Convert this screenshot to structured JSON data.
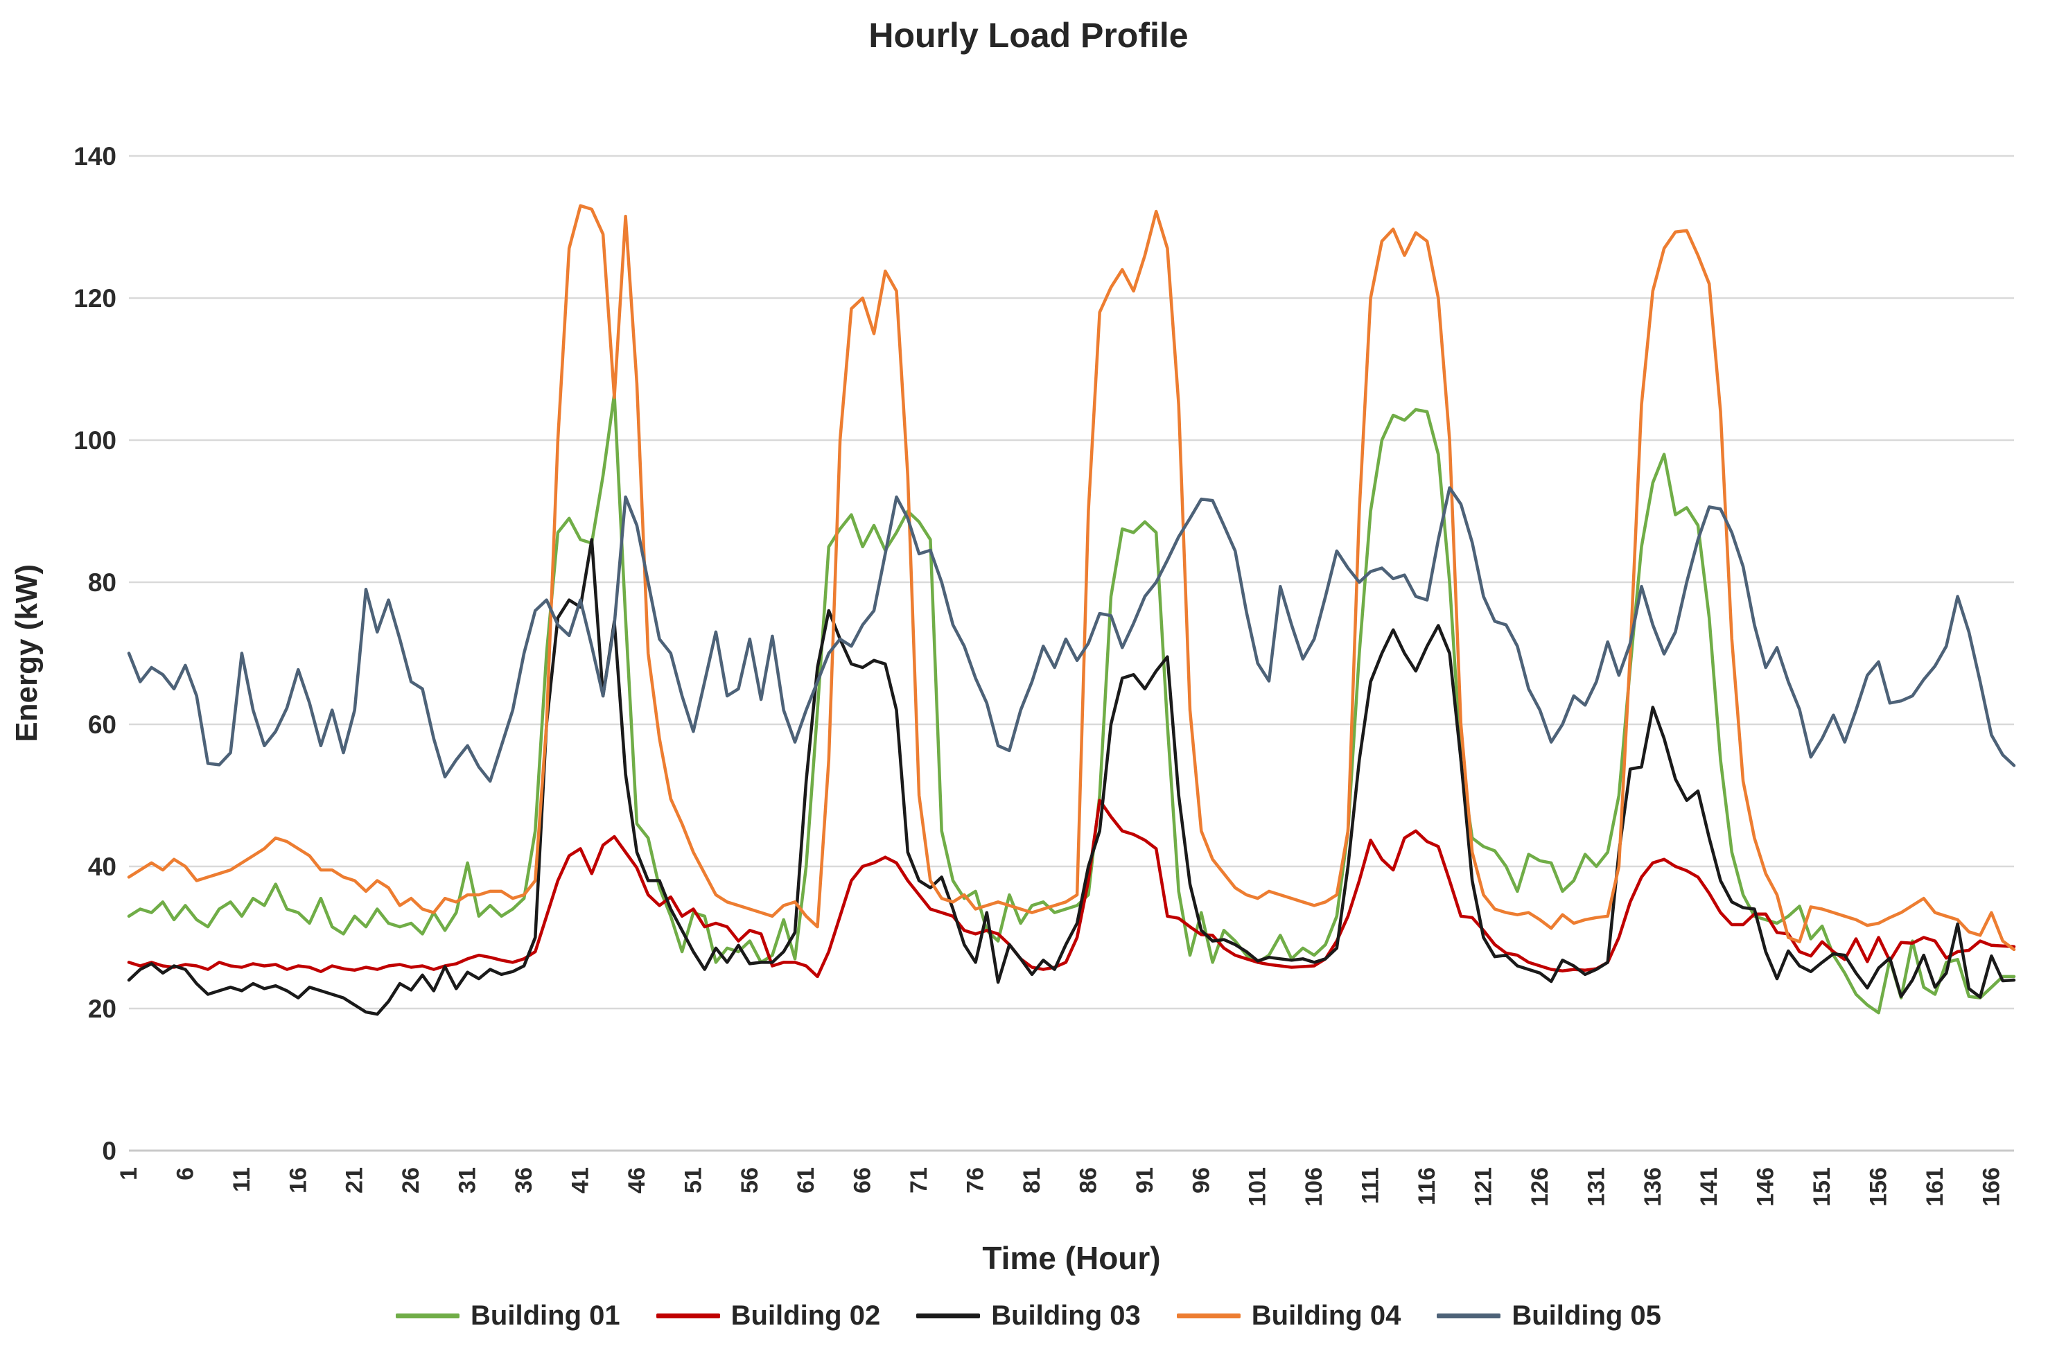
{
  "chart_data": {
    "type": "line",
    "title": "Hourly Load Profile",
    "xlabel": "Time (Hour)",
    "ylabel": "Energy (kW)",
    "hours": 168,
    "x_tick_labels": [
      1,
      6,
      11,
      16,
      21,
      26,
      31,
      36,
      41,
      46,
      51,
      56,
      61,
      66,
      71,
      76,
      81,
      86,
      91,
      96,
      101,
      106,
      111,
      116,
      121,
      126,
      131,
      136,
      141,
      146,
      151,
      156,
      161,
      166
    ],
    "y_ticks": [
      0,
      20,
      40,
      60,
      80,
      100,
      120,
      140
    ],
    "ylim": [
      0,
      140
    ],
    "grid": "horizontal",
    "gridline_color": "#D9D9D9",
    "legend_position": "bottom",
    "series": [
      {
        "name": "Building 01",
        "color": "#70AD47",
        "values": [
          33,
          34,
          33.5,
          35,
          32.5,
          34.5,
          32.5,
          31.5,
          34,
          35,
          33,
          35.5,
          34.5,
          37.5,
          34,
          33.5,
          32,
          35.5,
          31.5,
          30.5,
          33,
          31.5,
          34,
          32,
          31.5,
          32,
          30.5,
          33.5,
          31,
          33.5,
          40.5,
          33,
          34.5,
          33,
          34,
          35.5,
          45,
          70,
          87,
          89,
          86,
          85.5,
          95,
          106.5,
          75,
          46,
          44,
          37,
          33,
          28,
          33.5,
          33,
          26.5,
          28.5,
          28,
          29.5,
          26.5,
          27.5,
          32.5,
          27,
          40,
          62,
          85,
          87.5,
          89.5,
          85,
          88,
          84.5,
          87,
          90,
          88.5,
          86,
          45,
          38,
          35.5,
          36.5,
          31,
          29.5,
          36,
          32,
          34.5,
          35,
          33.5,
          34,
          34.5,
          36,
          50,
          78,
          87.5,
          87,
          88.5,
          87,
          60,
          36.5,
          27.5,
          33.5,
          26.5,
          31,
          29.5,
          27.5,
          26.5,
          27.5,
          30.3,
          27,
          28.5,
          27.5,
          29,
          33,
          45,
          70,
          90,
          100,
          103.5,
          102.8,
          104.3,
          104,
          98,
          80,
          55,
          44,
          42.8,
          42.2,
          40,
          36.5,
          41.7,
          40.8,
          40.5,
          36.5,
          38,
          41.7,
          40,
          42,
          50,
          68,
          85,
          94,
          98,
          89.5,
          90.5,
          88,
          75,
          55,
          42,
          36,
          33,
          32.5,
          32,
          33,
          34.4,
          29.8,
          31.6,
          27.5,
          25,
          22,
          20.5,
          19.4,
          26.9,
          21.5,
          29.5,
          23,
          22,
          26.5,
          26.9,
          21.7,
          21.5,
          23,
          24.5,
          24.5
        ]
      },
      {
        "name": "Building 02",
        "color": "#C00000",
        "values": [
          26.5,
          26,
          26.5,
          26,
          25.8,
          26.2,
          26,
          25.5,
          26.5,
          26,
          25.8,
          26.3,
          26,
          26.2,
          25.5,
          26,
          25.8,
          25.2,
          26,
          25.6,
          25.4,
          25.8,
          25.5,
          26,
          26.2,
          25.8,
          26,
          25.5,
          26,
          26.3,
          27,
          27.5,
          27.2,
          26.8,
          26.5,
          27,
          28,
          33,
          38,
          41.5,
          42.5,
          39,
          43,
          44.2,
          42,
          39.8,
          36,
          34.5,
          35.7,
          33,
          34,
          31.5,
          32,
          31.5,
          29.5,
          31,
          30.5,
          26,
          26.5,
          26.5,
          26,
          24.5,
          28,
          33,
          38,
          40,
          40.5,
          41.3,
          40.5,
          38,
          36,
          34,
          33.5,
          33,
          31,
          30.5,
          31,
          30.5,
          29,
          27,
          25.8,
          25.5,
          25.8,
          26.5,
          30,
          38,
          49.3,
          47,
          45,
          44.5,
          43.7,
          42.5,
          33,
          32.7,
          31.5,
          30.4,
          30.3,
          28.5,
          27.5,
          27,
          26.5,
          26.2,
          26,
          25.8,
          25.9,
          26,
          27,
          29.5,
          33,
          38,
          43.7,
          41,
          39.5,
          44,
          45,
          43.5,
          42.8,
          38,
          33,
          32.8,
          31,
          29,
          27.8,
          27.5,
          26.5,
          26,
          25.5,
          25.3,
          25.5,
          25.4,
          25.6,
          26.5,
          30,
          35,
          38.5,
          40.5,
          41,
          40,
          39.4,
          38.5,
          36.2,
          33.5,
          31.8,
          31.8,
          33.3,
          33.3,
          30.7,
          30.5,
          28,
          27.4,
          29.4,
          28,
          26.9,
          29.8,
          26.6,
          30,
          26.7,
          29.3,
          29.2,
          30,
          29.5,
          27.1,
          28,
          28.2,
          29.5,
          28.9,
          28.8,
          28.7
        ]
      },
      {
        "name": "Building 03",
        "color": "#1a1a1a",
        "values": [
          24,
          25.5,
          26.3,
          25,
          26,
          25.5,
          23.5,
          22,
          22.5,
          23,
          22.5,
          23.5,
          22.8,
          23.2,
          22.5,
          21.5,
          23,
          22.5,
          22,
          21.5,
          20.5,
          19.5,
          19.2,
          21,
          23.5,
          22.6,
          24.7,
          22.5,
          25.9,
          22.8,
          25.1,
          24.2,
          25.5,
          24.8,
          25.2,
          26,
          30,
          60,
          75,
          77.5,
          76.5,
          86,
          64,
          74.5,
          53,
          42,
          38,
          38,
          34,
          31,
          28,
          25.5,
          28.5,
          26.5,
          28.9,
          26.3,
          26.5,
          26.5,
          28,
          30.7,
          52,
          68,
          76,
          72,
          68.5,
          68,
          69,
          68.5,
          62,
          42,
          38,
          37,
          38.5,
          34,
          29,
          26.5,
          33.5,
          23.7,
          29,
          27,
          24.8,
          26.8,
          25.5,
          29,
          32,
          40,
          45,
          60,
          66.5,
          67,
          65,
          67.5,
          69.5,
          50,
          37.5,
          31,
          29.5,
          29.7,
          29,
          28,
          26.7,
          27.2,
          27,
          26.8,
          27,
          26.5,
          27,
          28.5,
          40,
          55,
          66,
          70,
          73.3,
          70,
          67.5,
          71,
          73.9,
          70,
          55,
          38,
          30,
          27.3,
          27.5,
          26,
          25.5,
          25,
          23.8,
          26.8,
          26,
          24.8,
          25.5,
          26.5,
          42,
          53.7,
          54,
          62.4,
          58,
          52.3,
          49.3,
          50.6,
          44,
          38,
          35,
          34.2,
          34,
          28,
          24.2,
          28.1,
          26,
          25.2,
          26.5,
          27.7,
          27.5,
          25,
          22.9,
          25.7,
          27.1,
          21.7,
          24,
          27.5,
          23,
          25,
          31.9,
          22.8,
          21.6,
          27.4,
          23.9,
          24
        ]
      },
      {
        "name": "Building 04",
        "color": "#ED7D31",
        "values": [
          38.5,
          39.5,
          40.5,
          39.5,
          41,
          40,
          38,
          38.5,
          39,
          39.5,
          40.5,
          41.5,
          42.5,
          44,
          43.5,
          42.5,
          41.5,
          39.5,
          39.5,
          38.5,
          38,
          36.5,
          38,
          37,
          34.5,
          35.5,
          34,
          33.5,
          35.5,
          35,
          36,
          36,
          36.5,
          36.5,
          35.5,
          36,
          38,
          60,
          100,
          127,
          133,
          132.5,
          129,
          106,
          131.5,
          108,
          70,
          58,
          49.5,
          46,
          42,
          39,
          36,
          35,
          34.5,
          34,
          33.5,
          33,
          34.5,
          35,
          33,
          31.5,
          55,
          100,
          118.5,
          120,
          115,
          123.8,
          121,
          95,
          50,
          38,
          35.5,
          35,
          36,
          34,
          34.5,
          35,
          34.5,
          34,
          33.5,
          34,
          34.5,
          35,
          36,
          90,
          118,
          121.5,
          124,
          121,
          126,
          132.2,
          127,
          105,
          62,
          45,
          41,
          39,
          37,
          36,
          35.5,
          36.5,
          36,
          35.5,
          35,
          34.5,
          35,
          36,
          45,
          90,
          120,
          128,
          129.7,
          126,
          129.2,
          128,
          120,
          100,
          60,
          42,
          36,
          34,
          33.5,
          33.2,
          33.5,
          32.5,
          31.3,
          33.2,
          32,
          32.5,
          32.8,
          33,
          40,
          70,
          105,
          121,
          127,
          129.3,
          129.5,
          126,
          122,
          104,
          72,
          52,
          44,
          39,
          36,
          30,
          29.4,
          34.3,
          34,
          33.5,
          33,
          32.5,
          31.7,
          32,
          32.8,
          33.5,
          34.5,
          35.5,
          33.5,
          33,
          32.5,
          30.8,
          30.3,
          33.5,
          29.5,
          28.3
        ]
      },
      {
        "name": "Building 05",
        "color": "#4D6278",
        "values": [
          70,
          66,
          68,
          67,
          65,
          68.3,
          64,
          54.5,
          54.3,
          56,
          70,
          62,
          57,
          59,
          62.3,
          67.7,
          63,
          57,
          62,
          56,
          62,
          79,
          73,
          77.5,
          72,
          66,
          65,
          58,
          52.6,
          55,
          57,
          54,
          52,
          57,
          62,
          70,
          76,
          77.5,
          74,
          72.5,
          77.5,
          71,
          64,
          74,
          92,
          88,
          80,
          72,
          70,
          64,
          59,
          66,
          73,
          64,
          65,
          72,
          63.5,
          72.4,
          62,
          57.5,
          62,
          66,
          70,
          72,
          71,
          74,
          76,
          84,
          92,
          89,
          84,
          84.5,
          80,
          74,
          71,
          66.5,
          63,
          57,
          56.3,
          62,
          66,
          71,
          68,
          72,
          69,
          71.4,
          75.6,
          75.3,
          70.8,
          74.2,
          78,
          80,
          83.1,
          86.4,
          89,
          91.7,
          91.5,
          88,
          84.4,
          75.8,
          68.6,
          66.1,
          79.4,
          74,
          69.2,
          72,
          78,
          84.4,
          82,
          80,
          81.5,
          82,
          80.5,
          81,
          78,
          77.5,
          86,
          93.3,
          91,
          85.6,
          78,
          74.5,
          74,
          71,
          65,
          62,
          57.5,
          60,
          64,
          62.7,
          66,
          71.6,
          66.9,
          71.4,
          79.4,
          74,
          69.9,
          73,
          80,
          86,
          90.6,
          90.3,
          87,
          82.2,
          74,
          68,
          70.8,
          66,
          62.1,
          55.4,
          58,
          61.3,
          57.5,
          62,
          66.9,
          68.8,
          63,
          63.3,
          64,
          66.3,
          68.2,
          71,
          78,
          73,
          66,
          58.5,
          55.7,
          54.2
        ]
      }
    ]
  }
}
